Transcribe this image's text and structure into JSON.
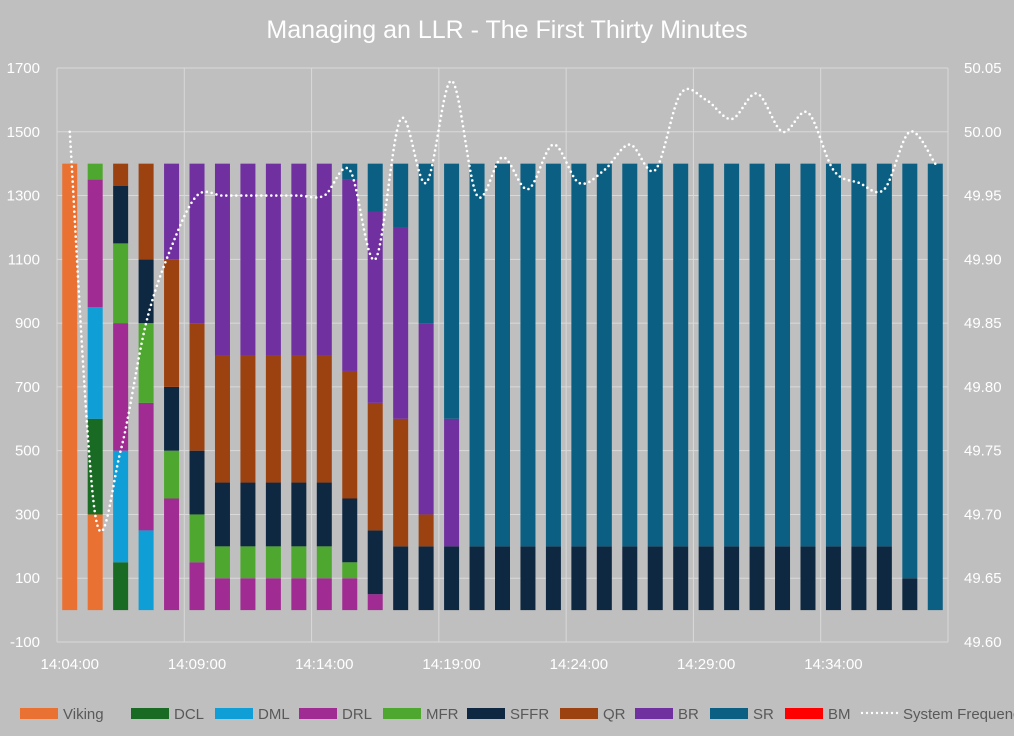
{
  "chart_data": {
    "type": "bar",
    "stacked": true,
    "title": "Managing an LLR - The First Thirty Minutes",
    "xlabel": "",
    "ylabel": "",
    "y2label": "",
    "ylim": [
      -100,
      1700
    ],
    "yticks": [
      -100,
      100,
      300,
      500,
      700,
      900,
      1100,
      1300,
      1500,
      1700
    ],
    "y2lim": [
      49.6,
      50.05
    ],
    "y2ticks": [
      "49.60",
      "49.65",
      "49.70",
      "49.75",
      "49.80",
      "49.85",
      "49.90",
      "49.95",
      "50.00",
      "50.05"
    ],
    "grid": true,
    "legend_position": "bottom",
    "categories": [
      "14:04:00",
      "14:05:00",
      "14:06:00",
      "14:07:00",
      "14:08:00",
      "14:09:00",
      "14:10:00",
      "14:11:00",
      "14:12:00",
      "14:13:00",
      "14:14:00",
      "14:15:00",
      "14:16:00",
      "14:17:00",
      "14:18:00",
      "14:19:00",
      "14:20:00",
      "14:21:00",
      "14:22:00",
      "14:23:00",
      "14:24:00",
      "14:25:00",
      "14:26:00",
      "14:27:00",
      "14:28:00",
      "14:29:00",
      "14:30:00",
      "14:31:00",
      "14:32:00",
      "14:33:00",
      "14:34:00",
      "14:35:00",
      "14:36:00",
      "14:37:00",
      "14:38:00"
    ],
    "x_tick_labels": [
      "14:04:00",
      "14:09:00",
      "14:14:00",
      "14:19:00",
      "14:24:00",
      "14:29:00",
      "14:34:00"
    ],
    "series": [
      {
        "name": "Viking",
        "color": "#E97132",
        "values": [
          1400,
          300,
          0,
          0,
          0,
          0,
          0,
          0,
          0,
          0,
          0,
          0,
          0,
          0,
          0,
          0,
          0,
          0,
          0,
          0,
          0,
          0,
          0,
          0,
          0,
          0,
          0,
          0,
          0,
          0,
          0,
          0,
          0,
          0,
          0
        ]
      },
      {
        "name": "DCL",
        "color": "#196B24",
        "values": [
          0,
          300,
          150,
          0,
          0,
          0,
          0,
          0,
          0,
          0,
          0,
          0,
          0,
          0,
          0,
          0,
          0,
          0,
          0,
          0,
          0,
          0,
          0,
          0,
          0,
          0,
          0,
          0,
          0,
          0,
          0,
          0,
          0,
          0,
          0
        ]
      },
      {
        "name": "DML",
        "color": "#0F9ED5",
        "values": [
          0,
          350,
          350,
          250,
          0,
          0,
          0,
          0,
          0,
          0,
          0,
          0,
          0,
          0,
          0,
          0,
          0,
          0,
          0,
          0,
          0,
          0,
          0,
          0,
          0,
          0,
          0,
          0,
          0,
          0,
          0,
          0,
          0,
          0,
          0
        ]
      },
      {
        "name": "DRL",
        "color": "#A02B93",
        "values": [
          0,
          400,
          400,
          400,
          350,
          150,
          100,
          100,
          100,
          100,
          100,
          100,
          50,
          0,
          0,
          0,
          0,
          0,
          0,
          0,
          0,
          0,
          0,
          0,
          0,
          0,
          0,
          0,
          0,
          0,
          0,
          0,
          0,
          0,
          0
        ]
      },
      {
        "name": "MFR",
        "color": "#4EA72E",
        "values": [
          0,
          50,
          250,
          250,
          150,
          150,
          100,
          100,
          100,
          100,
          100,
          50,
          0,
          0,
          0,
          0,
          0,
          0,
          0,
          0,
          0,
          0,
          0,
          0,
          0,
          0,
          0,
          0,
          0,
          0,
          0,
          0,
          0,
          0,
          0
        ]
      },
      {
        "name": "SFFR",
        "color": "#0E2841",
        "values": [
          0,
          0,
          180,
          200,
          200,
          200,
          200,
          200,
          200,
          200,
          200,
          200,
          200,
          200,
          200,
          200,
          200,
          200,
          200,
          200,
          200,
          200,
          200,
          200,
          200,
          200,
          200,
          200,
          200,
          200,
          200,
          200,
          200,
          100,
          0
        ]
      },
      {
        "name": "QR",
        "color": "#9C4110",
        "values": [
          0,
          0,
          70,
          300,
          400,
          400,
          400,
          400,
          400,
          400,
          400,
          400,
          400,
          400,
          100,
          0,
          0,
          0,
          0,
          0,
          0,
          0,
          0,
          0,
          0,
          0,
          0,
          0,
          0,
          0,
          0,
          0,
          0,
          0,
          0
        ]
      },
      {
        "name": "BR",
        "color": "#7030A0",
        "values": [
          0,
          0,
          0,
          0,
          300,
          500,
          600,
          600,
          600,
          600,
          600,
          600,
          600,
          600,
          600,
          400,
          0,
          0,
          0,
          0,
          0,
          0,
          0,
          0,
          0,
          0,
          0,
          0,
          0,
          0,
          0,
          0,
          0,
          0,
          0
        ]
      },
      {
        "name": "SR",
        "color": "#0B5F82",
        "values": [
          0,
          0,
          0,
          0,
          0,
          0,
          0,
          0,
          0,
          0,
          0,
          50,
          150,
          200,
          500,
          800,
          1200,
          1200,
          1200,
          1200,
          1200,
          1200,
          1200,
          1200,
          1200,
          1200,
          1200,
          1200,
          1200,
          1200,
          1200,
          1200,
          1200,
          1300,
          1400
        ]
      },
      {
        "name": "BM",
        "color": "#FF0000",
        "values": [
          0,
          0,
          0,
          0,
          0,
          0,
          0,
          0,
          0,
          0,
          0,
          0,
          0,
          0,
          0,
          0,
          0,
          0,
          0,
          0,
          0,
          0,
          0,
          0,
          0,
          0,
          0,
          0,
          0,
          0,
          0,
          0,
          0,
          0,
          0
        ]
      }
    ],
    "line_series": {
      "name": "System Frequency",
      "color": "#FFFFFF",
      "style": "dotted",
      "axis": "secondary",
      "values": [
        50.0,
        49.7,
        49.75,
        49.85,
        49.91,
        49.95,
        49.95,
        49.95,
        49.95,
        49.95,
        49.95,
        49.97,
        49.9,
        50.01,
        49.96,
        50.04,
        49.95,
        49.98,
        49.955,
        49.99,
        49.96,
        49.97,
        49.99,
        49.97,
        50.03,
        50.025,
        50.01,
        50.03,
        50.0,
        50.015,
        49.97,
        49.96,
        49.955,
        50.0,
        49.975
      ]
    },
    "colors": {
      "background": "#BFBFBF",
      "gridline": "#D9D9D9",
      "tick_text": "#FFFFFF",
      "legend_text": "#595959"
    }
  }
}
